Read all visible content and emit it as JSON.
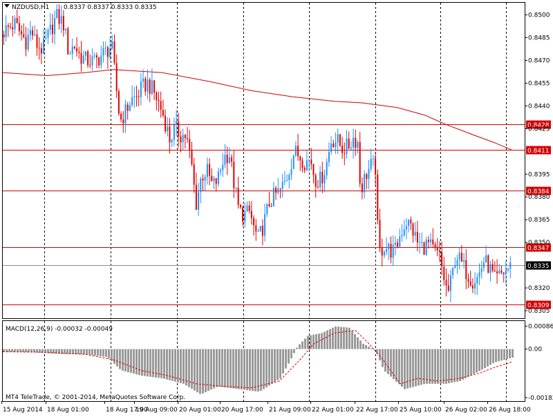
{
  "header": {
    "symbol": "NZDUSD,H1",
    "ohlc": "0.8337 0.8337 0.8333 0.8335"
  },
  "footer": {
    "copyright": "MT4 TeleTrade, © 2001-2014, MetaQuotes Software Corp."
  },
  "colors": {
    "background": "#ffffff",
    "bull": "#1e90ff",
    "bear": "#e00000",
    "ma": "#cc0000",
    "level_line": "#d40000",
    "current_line": "#8c8c8c",
    "grid": "#000000",
    "histogram": "#9a9a9a",
    "signal": "#e00000"
  },
  "chart_data": [
    {
      "type": "candlestick",
      "title": "NZDUSD,H1",
      "y_ticks": [
        "0.8500",
        "0.8485",
        "0.8470",
        "0.8455",
        "0.8440",
        "0.8425",
        "0.8395",
        "0.8380",
        "0.8365",
        "0.8350",
        "0.8320",
        "0.8305"
      ],
      "ylim": [
        0.83,
        0.8508
      ],
      "x_labels": [
        "15 Aug 2014",
        "18 Aug 01:00",
        "18 Aug 17:00",
        "19 Aug 09:00",
        "20 Aug 01:00",
        "20 Aug 17:00",
        "21 Aug 09:00",
        "22 Aug 01:00",
        "22 Aug 17:00",
        "25 Aug 10:00",
        "26 Aug 02:00",
        "26 Aug 18:00"
      ],
      "levels": [
        {
          "label": "0.8428",
          "value": 0.8428
        },
        {
          "label": "0.8411",
          "value": 0.8411
        },
        {
          "label": "0.8384",
          "value": 0.8384
        },
        {
          "label": "0.8347",
          "value": 0.8347
        },
        {
          "label": "0.8309",
          "value": 0.8309
        }
      ],
      "current_price": {
        "label": "0.8335",
        "value": 0.8335
      },
      "close_path": [
        [
          0,
          0.8489
        ],
        [
          8,
          0.8492
        ],
        [
          16,
          0.8494
        ],
        [
          24,
          0.8488
        ],
        [
          32,
          0.8483
        ],
        [
          40,
          0.849
        ],
        [
          46,
          0.8481
        ],
        [
          56,
          0.8477
        ],
        [
          66,
          0.8488
        ],
        [
          76,
          0.8499
        ],
        [
          86,
          0.8495
        ],
        [
          94,
          0.8475
        ],
        [
          102,
          0.848
        ],
        [
          110,
          0.8473
        ],
        [
          120,
          0.847
        ],
        [
          132,
          0.8469
        ],
        [
          140,
          0.8473
        ],
        [
          148,
          0.8476
        ],
        [
          156,
          0.848
        ],
        [
          162,
          0.8455
        ],
        [
          168,
          0.843
        ],
        [
          176,
          0.8436
        ],
        [
          184,
          0.8444
        ],
        [
          192,
          0.8446
        ],
        [
          200,
          0.8452
        ],
        [
          208,
          0.8455
        ],
        [
          216,
          0.845
        ],
        [
          224,
          0.8442
        ],
        [
          232,
          0.8432
        ],
        [
          240,
          0.8418
        ],
        [
          248,
          0.8425
        ],
        [
          256,
          0.8421
        ],
        [
          264,
          0.842
        ],
        [
          272,
          0.84
        ],
        [
          278,
          0.8375
        ],
        [
          286,
          0.8394
        ],
        [
          294,
          0.8397
        ],
        [
          302,
          0.8387
        ],
        [
          310,
          0.8392
        ],
        [
          318,
          0.8406
        ],
        [
          326,
          0.8409
        ],
        [
          334,
          0.8386
        ],
        [
          340,
          0.8371
        ],
        [
          348,
          0.8368
        ],
        [
          356,
          0.837
        ],
        [
          362,
          0.8359
        ],
        [
          368,
          0.8352
        ],
        [
          376,
          0.8362
        ],
        [
          384,
          0.8376
        ],
        [
          392,
          0.8381
        ],
        [
          400,
          0.8384
        ],
        [
          408,
          0.8391
        ],
        [
          414,
          0.84
        ],
        [
          420,
          0.841
        ],
        [
          428,
          0.8407
        ],
        [
          436,
          0.8403
        ],
        [
          444,
          0.8405
        ],
        [
          450,
          0.8392
        ],
        [
          458,
          0.8391
        ],
        [
          466,
          0.84
        ],
        [
          474,
          0.8418
        ],
        [
          482,
          0.8417
        ],
        [
          490,
          0.8412
        ],
        [
          498,
          0.8413
        ],
        [
          506,
          0.8419
        ],
        [
          512,
          0.8416
        ],
        [
          516,
          0.8384
        ],
        [
          524,
          0.8395
        ],
        [
          532,
          0.8401
        ],
        [
          538,
          0.8399
        ],
        [
          542,
          0.8342
        ],
        [
          550,
          0.8348
        ],
        [
          558,
          0.8345
        ],
        [
          566,
          0.8344
        ],
        [
          574,
          0.8356
        ],
        [
          582,
          0.8364
        ],
        [
          590,
          0.836
        ],
        [
          598,
          0.835
        ],
        [
          606,
          0.8347
        ],
        [
          614,
          0.8349
        ],
        [
          622,
          0.8344
        ],
        [
          630,
          0.8341
        ],
        [
          636,
          0.8328
        ],
        [
          642,
          0.8316
        ],
        [
          648,
          0.8326
        ],
        [
          654,
          0.8343
        ],
        [
          662,
          0.8336
        ],
        [
          670,
          0.833
        ],
        [
          678,
          0.8325
        ],
        [
          686,
          0.8327
        ],
        [
          694,
          0.8338
        ],
        [
          702,
          0.8334
        ],
        [
          710,
          0.8325
        ],
        [
          716,
          0.8327
        ],
        [
          722,
          0.833
        ],
        [
          730,
          0.8333
        ],
        [
          736,
          0.8335
        ]
      ],
      "ma_path": [
        [
          0,
          0.8462
        ],
        [
          64,
          0.846
        ],
        [
          120,
          0.8462
        ],
        [
          160,
          0.8464
        ],
        [
          230,
          0.8462
        ],
        [
          300,
          0.8456
        ],
        [
          360,
          0.845
        ],
        [
          420,
          0.8446
        ],
        [
          480,
          0.8443
        ],
        [
          520,
          0.8442
        ],
        [
          570,
          0.8439
        ],
        [
          610,
          0.8434
        ],
        [
          640,
          0.8428
        ],
        [
          680,
          0.8421
        ],
        [
          710,
          0.8416
        ],
        [
          736,
          0.8411
        ]
      ]
    },
    {
      "type": "bar",
      "title": "MACD(12,26,9) -0.00032 -0.00049",
      "y_ticks": [
        "0.00086",
        "0.00",
        "-0.00182"
      ],
      "ylim": [
        -0.00195,
        0.00105
      ],
      "histogram_path": [
        [
          0,
          -0.0001
        ],
        [
          40,
          -0.00012
        ],
        [
          80,
          -0.00018
        ],
        [
          120,
          -0.0002
        ],
        [
          150,
          -0.0003
        ],
        [
          170,
          -0.0008
        ],
        [
          200,
          -0.001
        ],
        [
          230,
          -0.0011
        ],
        [
          260,
          -0.0013
        ],
        [
          285,
          -0.0017
        ],
        [
          310,
          -0.0014
        ],
        [
          340,
          -0.0015
        ],
        [
          370,
          -0.0016
        ],
        [
          400,
          -0.0011
        ],
        [
          415,
          -0.0004
        ],
        [
          425,
          0.0001
        ],
        [
          440,
          0.0005
        ],
        [
          460,
          0.0006
        ],
        [
          480,
          0.00085
        ],
        [
          500,
          0.0008
        ],
        [
          520,
          0.0002
        ],
        [
          538,
          -5e-05
        ],
        [
          550,
          -0.0008
        ],
        [
          580,
          -0.0015
        ],
        [
          610,
          -0.0013
        ],
        [
          640,
          -0.0013
        ],
        [
          660,
          -0.0012
        ],
        [
          690,
          -0.0008
        ],
        [
          710,
          -0.0005
        ],
        [
          736,
          -0.00032
        ]
      ],
      "signal_path": [
        [
          0,
          -0.0001
        ],
        [
          60,
          -0.00012
        ],
        [
          120,
          -0.0002
        ],
        [
          160,
          -0.0004
        ],
        [
          200,
          -0.0008
        ],
        [
          240,
          -0.001
        ],
        [
          280,
          -0.0013
        ],
        [
          320,
          -0.0014
        ],
        [
          360,
          -0.00145
        ],
        [
          400,
          -0.0012
        ],
        [
          430,
          -0.0004
        ],
        [
          450,
          0.0002
        ],
        [
          480,
          0.0006
        ],
        [
          510,
          0.0007
        ],
        [
          530,
          0.0002
        ],
        [
          550,
          -0.0004
        ],
        [
          575,
          -0.0013
        ],
        [
          600,
          -0.0011
        ],
        [
          630,
          -0.0012
        ],
        [
          660,
          -0.0011
        ],
        [
          690,
          -0.0009
        ],
        [
          710,
          -0.0007
        ],
        [
          736,
          -0.00049
        ]
      ]
    }
  ]
}
